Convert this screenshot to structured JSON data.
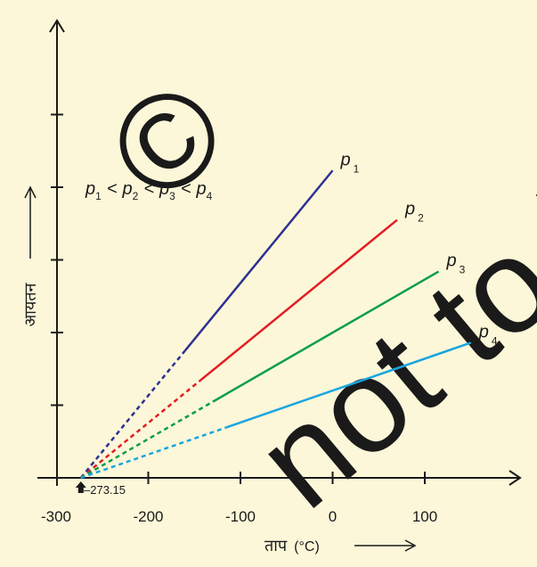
{
  "colors": {
    "background": "#fdf7d9",
    "axis": "#1a1a1a",
    "watermark": "#e9e0b4"
  },
  "watermark": {
    "symbol": "©",
    "text": "not to be"
  },
  "chart_data": {
    "type": "line",
    "xlabel": "ताप",
    "xlabel_unit": "(°C)",
    "ylabel": "आयतन",
    "xlim": [
      -300,
      180
    ],
    "ylim": [
      0,
      10
    ],
    "xticks": [
      -300,
      -200,
      -100,
      0,
      100
    ],
    "xtick_labels": [
      "-300",
      "-200",
      "-100",
      "0",
      "100"
    ],
    "yticks": [
      1,
      2,
      3,
      4,
      5
    ],
    "grid": false,
    "annotation": "–273.15",
    "annotation_x": -273.15,
    "inequality": {
      "terms": [
        {
          "symbol": "p",
          "sub": "1"
        },
        {
          "symbol": "p",
          "sub": "2"
        },
        {
          "symbol": "p",
          "sub": "3"
        },
        {
          "symbol": "p",
          "sub": "4"
        }
      ],
      "operator": "<"
    },
    "series": [
      {
        "name": "p",
        "sub": "1",
        "color": "#2e3192",
        "dashed_to": -160,
        "x": [
          -273.15,
          0
        ],
        "y": [
          0,
          4.23
        ]
      },
      {
        "name": "p",
        "sub": "2",
        "color": "#e31e24",
        "dashed_to": -145,
        "x": [
          -273.15,
          70
        ],
        "y": [
          0,
          3.55
        ]
      },
      {
        "name": "p",
        "sub": "3",
        "color": "#0c9e48",
        "dashed_to": -130,
        "x": [
          -273.15,
          115
        ],
        "y": [
          0,
          2.84
        ]
      },
      {
        "name": "p",
        "sub": "4",
        "color": "#1aa5e0",
        "dashed_to": -115,
        "x": [
          -273.15,
          150
        ],
        "y": [
          0,
          1.86
        ]
      }
    ]
  }
}
